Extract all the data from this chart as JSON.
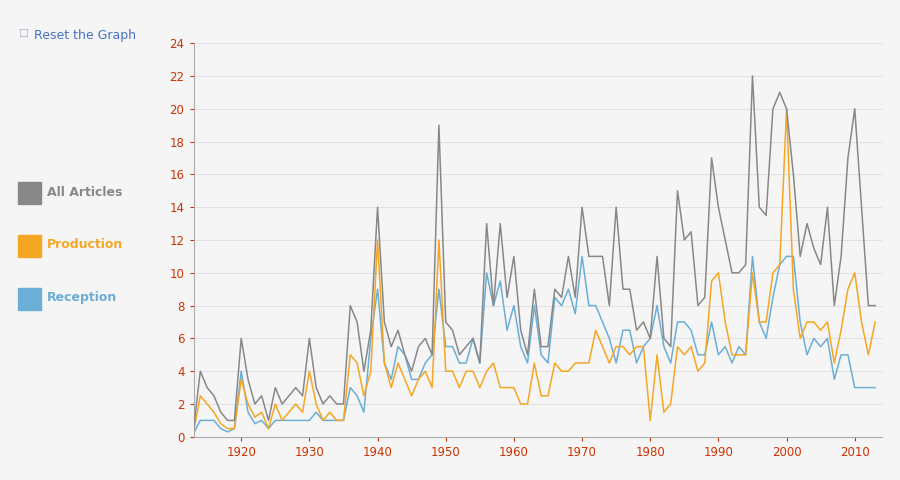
{
  "years": [
    1913,
    1914,
    1915,
    1916,
    1917,
    1918,
    1919,
    1920,
    1921,
    1922,
    1923,
    1924,
    1925,
    1926,
    1927,
    1928,
    1929,
    1930,
    1931,
    1932,
    1933,
    1934,
    1935,
    1936,
    1937,
    1938,
    1939,
    1940,
    1941,
    1942,
    1943,
    1944,
    1945,
    1946,
    1947,
    1948,
    1949,
    1950,
    1951,
    1952,
    1953,
    1954,
    1955,
    1956,
    1957,
    1958,
    1959,
    1960,
    1961,
    1962,
    1963,
    1964,
    1965,
    1966,
    1967,
    1968,
    1969,
    1970,
    1971,
    1972,
    1973,
    1974,
    1975,
    1976,
    1977,
    1978,
    1979,
    1980,
    1981,
    1982,
    1983,
    1984,
    1985,
    1986,
    1987,
    1988,
    1989,
    1990,
    1991,
    1992,
    1993,
    1994,
    1995,
    1996,
    1997,
    1998,
    1999,
    2000,
    2001,
    2002,
    2003,
    2004,
    2005,
    2006,
    2007,
    2008,
    2009,
    2010,
    2011,
    2012,
    2013
  ],
  "all_articles": [
    0.5,
    4.0,
    3.0,
    2.5,
    1.5,
    1.0,
    1.0,
    6.0,
    3.5,
    2.0,
    2.5,
    1.0,
    3.0,
    2.0,
    2.5,
    3.0,
    2.5,
    6.0,
    3.0,
    2.0,
    2.5,
    2.0,
    2.0,
    8.0,
    7.0,
    4.0,
    6.5,
    14.0,
    7.0,
    5.5,
    6.5,
    5.0,
    4.0,
    5.5,
    6.0,
    5.0,
    19.0,
    7.0,
    6.5,
    5.0,
    5.5,
    6.0,
    4.5,
    13.0,
    8.0,
    13.0,
    8.5,
    11.0,
    6.5,
    5.0,
    9.0,
    5.5,
    5.5,
    9.0,
    8.5,
    11.0,
    8.5,
    14.0,
    11.0,
    11.0,
    11.0,
    8.0,
    14.0,
    9.0,
    9.0,
    6.5,
    7.0,
    6.0,
    11.0,
    6.0,
    5.5,
    15.0,
    12.0,
    12.5,
    8.0,
    8.5,
    17.0,
    14.0,
    12.0,
    10.0,
    10.0,
    10.5,
    22.0,
    14.0,
    13.5,
    20.0,
    21.0,
    20.0,
    16.0,
    11.0,
    13.0,
    11.5,
    10.5,
    14.0,
    8.0,
    11.0,
    17.0,
    20.0,
    14.0,
    8.0,
    8.0
  ],
  "production": [
    0.3,
    2.5,
    2.0,
    1.5,
    0.8,
    0.5,
    0.5,
    3.5,
    2.0,
    1.2,
    1.5,
    0.5,
    2.0,
    1.0,
    1.5,
    2.0,
    1.5,
    4.0,
    2.0,
    1.0,
    1.5,
    1.0,
    1.0,
    5.0,
    4.5,
    2.5,
    4.0,
    12.0,
    4.5,
    3.0,
    4.5,
    3.5,
    2.5,
    3.5,
    4.0,
    3.0,
    12.0,
    4.0,
    4.0,
    3.0,
    4.0,
    4.0,
    3.0,
    4.0,
    4.5,
    3.0,
    3.0,
    3.0,
    2.0,
    2.0,
    4.5,
    2.5,
    2.5,
    4.5,
    4.0,
    4.0,
    4.5,
    4.5,
    4.5,
    6.5,
    5.5,
    4.5,
    5.5,
    5.5,
    5.0,
    5.5,
    5.5,
    1.0,
    5.0,
    1.5,
    2.0,
    5.5,
    5.0,
    5.5,
    4.0,
    4.5,
    9.5,
    10.0,
    7.0,
    5.0,
    5.0,
    5.0,
    10.0,
    7.0,
    7.0,
    10.0,
    10.5,
    20.0,
    9.0,
    6.0,
    7.0,
    7.0,
    6.5,
    7.0,
    4.5,
    6.5,
    9.0,
    10.0,
    7.0,
    5.0,
    7.0
  ],
  "reception": [
    0.2,
    1.0,
    1.0,
    1.0,
    0.5,
    0.3,
    0.5,
    4.0,
    1.5,
    0.8,
    1.0,
    0.5,
    1.0,
    1.0,
    1.0,
    1.0,
    1.0,
    1.0,
    1.5,
    1.0,
    1.0,
    1.0,
    1.0,
    3.0,
    2.5,
    1.5,
    6.0,
    9.0,
    4.5,
    3.5,
    5.5,
    5.0,
    3.5,
    3.5,
    4.5,
    5.0,
    9.0,
    5.5,
    5.5,
    4.5,
    4.5,
    6.0,
    4.5,
    10.0,
    8.0,
    9.5,
    6.5,
    8.0,
    5.5,
    4.5,
    8.0,
    5.0,
    4.5,
    8.5,
    8.0,
    9.0,
    7.5,
    11.0,
    8.0,
    8.0,
    7.0,
    6.0,
    4.5,
    6.5,
    6.5,
    4.5,
    5.5,
    6.0,
    8.0,
    5.5,
    4.5,
    7.0,
    7.0,
    6.5,
    5.0,
    5.0,
    7.0,
    5.0,
    5.5,
    4.5,
    5.5,
    5.0,
    11.0,
    7.0,
    6.0,
    8.5,
    10.5,
    11.0,
    11.0,
    7.0,
    5.0,
    6.0,
    5.5,
    6.0,
    3.5,
    5.0,
    5.0,
    3.0,
    3.0,
    3.0,
    3.0
  ],
  "color_all": "#888888",
  "color_production": "#f5a623",
  "color_reception": "#6baed6",
  "ylim": [
    0,
    24
  ],
  "yticks": [
    0,
    2,
    4,
    6,
    8,
    10,
    12,
    14,
    16,
    18,
    20,
    22,
    24
  ],
  "xticks": [
    1920,
    1930,
    1940,
    1950,
    1960,
    1970,
    1980,
    1990,
    2000,
    2010
  ],
  "legend_labels": [
    "All Articles",
    "Production",
    "Reception"
  ],
  "legend_colors": [
    "#888888",
    "#f5a623",
    "#6baed6"
  ],
  "bg_color": "#f5f5f5",
  "header_text": "Reset the Graph",
  "header_color": "#4472c4",
  "linewidth": 1.1,
  "tick_label_color": "#cc3300",
  "spine_color": "#aaaaaa",
  "grid_color": "#dddddd"
}
